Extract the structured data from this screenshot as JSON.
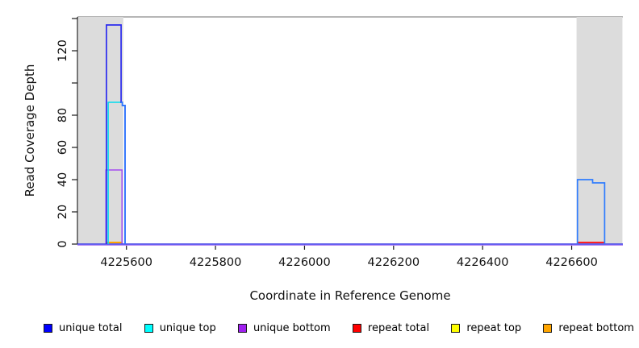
{
  "chart_data": {
    "type": "line",
    "step": true,
    "title": "",
    "xlabel": "Coordinate in Reference Genome",
    "ylabel": "Read Coverage Depth",
    "xlim": [
      4225490,
      4226715
    ],
    "ylim": [
      0,
      141
    ],
    "grid": false,
    "legend_position": "bottom",
    "x_ticks": [
      {
        "value": 4225600,
        "label": "4225600"
      },
      {
        "value": 4225800,
        "label": "4225800"
      },
      {
        "value": 4226000,
        "label": "4226000"
      },
      {
        "value": 4226200,
        "label": "4226200"
      },
      {
        "value": 4226400,
        "label": "4226400"
      },
      {
        "value": 4226600,
        "label": "4226600"
      }
    ],
    "y_ticks_labeled": [
      {
        "value": 0,
        "label": "0"
      },
      {
        "value": 20,
        "label": "20"
      },
      {
        "value": 40,
        "label": "40"
      },
      {
        "value": 60,
        "label": "60"
      },
      {
        "value": 80,
        "label": "80"
      },
      {
        "value": 120,
        "label": "120"
      }
    ],
    "y_ticks_unlabeled": [
      100,
      140
    ],
    "shaded_regions": [
      {
        "x0": 4225492,
        "x1": 4225593,
        "color": "#dcdcdc"
      },
      {
        "x0": 4226611,
        "x1": 4226714,
        "color": "#dcdcdc"
      }
    ],
    "series": [
      {
        "label": "unique total",
        "swatch": "#0000ff",
        "paths": [
          {
            "z": 3.5,
            "color": "#4a4af5",
            "w": 1.4,
            "dy": 0,
            "pts": [
              [
                4225490,
                0
              ],
              [
                4226715,
                0
              ]
            ]
          },
          {
            "z": 5,
            "color": "#2b2bee",
            "w": 1.7,
            "dy": 0,
            "pts": [
              [
                4225555,
                0
              ],
              [
                4225555,
                136
              ],
              [
                4225588,
                136
              ],
              [
                4225588,
                88
              ],
              [
                4225591,
                88
              ],
              [
                4225591,
                86
              ],
              [
                4225597,
                86
              ],
              [
                4225597,
                0
              ]
            ]
          }
        ]
      },
      {
        "label": "unique top",
        "swatch": "#00ffff",
        "paths": [
          {
            "z": 4,
            "color": "#00dcee",
            "w": 1.5,
            "dy": 0,
            "pts": [
              [
                4225559,
                0
              ],
              [
                4225559,
                88
              ],
              [
                4225588,
                88
              ]
            ]
          },
          {
            "z": 6,
            "color": "#2f7cfe",
            "w": 1.7,
            "dy": 0,
            "pts": [
              [
                4225588,
                88
              ],
              [
                4225591,
                88
              ],
              [
                4225591,
                86
              ],
              [
                4225597,
                86
              ],
              [
                4225597,
                0
              ]
            ]
          },
          {
            "z": 6,
            "color": "#2f7cfe",
            "w": 1.7,
            "dy": 0,
            "pts": [
              [
                4226613,
                0
              ],
              [
                4226613,
                40
              ],
              [
                4226647,
                40
              ],
              [
                4226647,
                38
              ],
              [
                4226674,
                38
              ],
              [
                4226674,
                0
              ]
            ]
          }
        ]
      },
      {
        "label": "unique bottom",
        "swatch": "#a020f0",
        "paths": [
          {
            "z": 2.9,
            "color": "#b689f0",
            "w": 1.4,
            "dy": 1.3,
            "pts": [
              [
                4225490,
                0
              ],
              [
                4226715,
                0
              ]
            ]
          },
          {
            "z": 3,
            "color": "#a44bf0",
            "w": 1.5,
            "dy": 0,
            "pts": [
              [
                4225554,
                0
              ],
              [
                4225554,
                46
              ],
              [
                4225590,
                46
              ],
              [
                4225590,
                0
              ]
            ]
          }
        ]
      },
      {
        "label": "repeat total",
        "swatch": "#ff0000",
        "paths": [
          {
            "z": 1,
            "color": "#ff2222",
            "w": 2,
            "dy": 0,
            "pts": [
              [
                4226613,
                1
              ],
              [
                4226674,
                1
              ]
            ]
          }
        ]
      },
      {
        "label": "repeat top",
        "swatch": "#ffff00",
        "paths": []
      },
      {
        "label": "repeat bottom",
        "swatch": "#ffa500",
        "paths": [
          {
            "z": 2,
            "color": "#ffa500",
            "w": 2,
            "dy": 0,
            "pts": [
              [
                4225554,
                1
              ],
              [
                4225591,
                1
              ]
            ]
          }
        ]
      }
    ]
  }
}
